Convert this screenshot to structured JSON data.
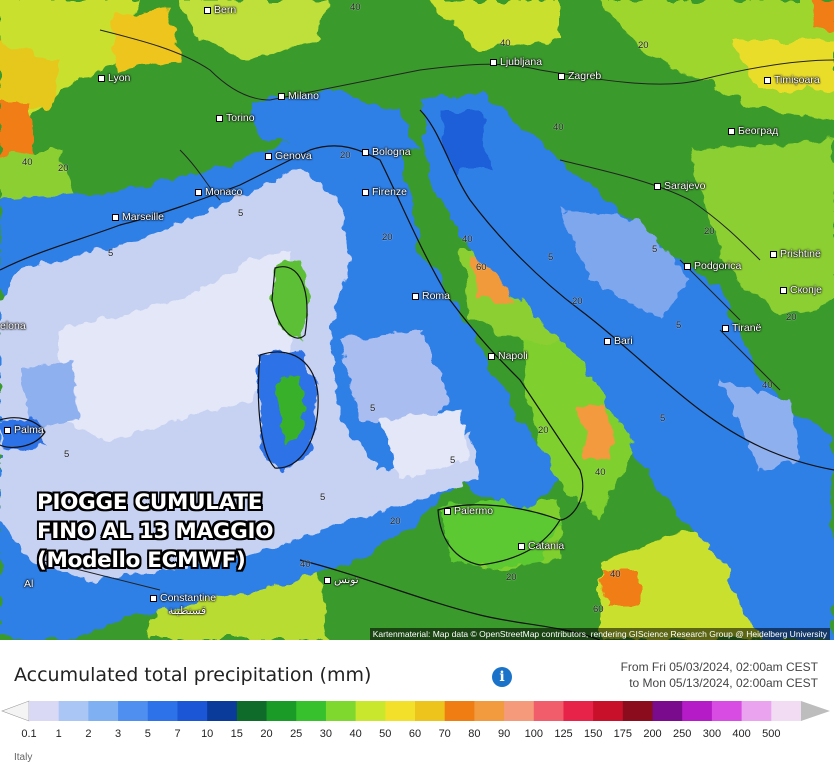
{
  "map": {
    "overlay_lines": [
      "PIOGGE CUMULATE",
      "FINO AL 13 MAGGIO",
      "(Modello ECMWF)"
    ],
    "attribution": "Kartenmaterial: Map data © OpenStreetMap contributors, rendering GIScience Research Group @ Heidelberg University",
    "cities": [
      {
        "id": "bern",
        "name": "Bern"
      },
      {
        "id": "lyon",
        "name": "Lyon"
      },
      {
        "id": "milano",
        "name": "Milano"
      },
      {
        "id": "torino",
        "name": "Torino"
      },
      {
        "id": "genova",
        "name": "Genova"
      },
      {
        "id": "bologna",
        "name": "Bologna"
      },
      {
        "id": "monaco",
        "name": "Monaco"
      },
      {
        "id": "marseille",
        "name": "Marseille"
      },
      {
        "id": "firenze",
        "name": "Firenze"
      },
      {
        "id": "ljubljana",
        "name": "Ljubljana"
      },
      {
        "id": "zagreb",
        "name": "Zagreb"
      },
      {
        "id": "timisoara",
        "name": "Timișoara"
      },
      {
        "id": "beograd",
        "name": "Београд"
      },
      {
        "id": "sarajevo",
        "name": "Sarajevo"
      },
      {
        "id": "podgorica",
        "name": "Podgorica"
      },
      {
        "id": "prishtine",
        "name": "Prishtinë"
      },
      {
        "id": "skopje",
        "name": "Скопје"
      },
      {
        "id": "tirane",
        "name": "Tiranë"
      },
      {
        "id": "roma",
        "name": "Roma"
      },
      {
        "id": "napoli",
        "name": "Napoli"
      },
      {
        "id": "bari",
        "name": "Bari"
      },
      {
        "id": "palma",
        "name": "Palma"
      },
      {
        "id": "barcelona",
        "name": "elona"
      },
      {
        "id": "palermo",
        "name": "Palermo"
      },
      {
        "id": "catania",
        "name": "Catania"
      },
      {
        "id": "tunis",
        "name": "تونس"
      },
      {
        "id": "constantine",
        "name": "Constantine"
      },
      {
        "id": "constantine_ar",
        "name": "قسنطينة"
      },
      {
        "id": "alger",
        "name": "Al"
      }
    ],
    "isolines": [
      "40",
      "20",
      "40",
      "40",
      "20",
      "40",
      "20",
      "5",
      "5",
      "20",
      "40",
      "5",
      "20",
      "5",
      "60",
      "20",
      "5",
      "20",
      "5",
      "5",
      "5",
      "5",
      "5",
      "40",
      "20",
      "20",
      "40",
      "60",
      "40",
      "20",
      "40"
    ]
  },
  "panel": {
    "title": "Accumulated total precipitation (mm)",
    "info_icon": "info-icon",
    "period_from": "From Fri 05/03/2024, 02:00am CEST",
    "period_to": "to Mon 05/13/2024, 02:00am CEST",
    "region": "Italy"
  },
  "legend": {
    "ticks": [
      "0.1",
      "1",
      "2",
      "3",
      "5",
      "7",
      "10",
      "15",
      "20",
      "25",
      "30",
      "40",
      "50",
      "60",
      "70",
      "80",
      "90",
      "100",
      "125",
      "150",
      "175",
      "200",
      "250",
      "300",
      "400",
      "500"
    ],
    "colors": [
      "#d9d9f5",
      "#a9c6f5",
      "#7fb0f2",
      "#4f8ff0",
      "#2d72e8",
      "#1b56d6",
      "#0a3a9a",
      "#0e6b2a",
      "#1a9a26",
      "#37c12c",
      "#7fd82e",
      "#c9e82d",
      "#f2e02a",
      "#ecc41c",
      "#f07d12",
      "#f29a3e",
      "#f59a7a",
      "#f25d6b",
      "#e8234a",
      "#c8102a",
      "#8a0c1d",
      "#7a0b8c",
      "#b51cc8",
      "#d84ce3",
      "#e9a3ef",
      "#f2dcf4"
    ],
    "end_left_color": "#f4f4f4",
    "end_right_color": "#bdbdbd"
  }
}
